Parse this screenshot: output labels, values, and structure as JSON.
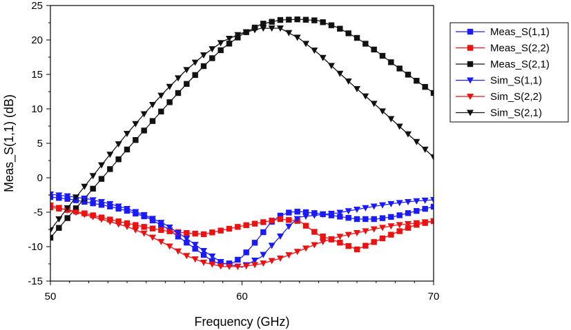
{
  "chart_data": {
    "type": "line",
    "xlabel": "Frequency (GHz)",
    "ylabel": "Meas_S(1,1) (dB)",
    "xlim": [
      50,
      70
    ],
    "ylim": [
      -15,
      25
    ],
    "xticks": [
      50,
      60,
      70
    ],
    "yticks": [
      -15,
      -10,
      -5,
      0,
      5,
      10,
      15,
      20,
      25
    ],
    "grid": false,
    "legend_position": "top-right",
    "series": [
      {
        "name": "Meas_S(1,1)",
        "marker": "square",
        "color": "#1a1aff",
        "x": [
          50,
          51,
          52,
          53,
          54,
          55,
          56,
          57,
          58,
          58.5,
          59,
          59.5,
          60,
          60.5,
          61,
          61.5,
          62,
          62.5,
          63,
          64,
          65,
          66,
          67,
          68,
          69,
          70
        ],
        "y": [
          -2.8,
          -3.1,
          -3.6,
          -4.1,
          -4.8,
          -5.7,
          -7.2,
          -9.2,
          -11.2,
          -12.2,
          -12.5,
          -12.4,
          -11.5,
          -10.0,
          -8.3,
          -6.5,
          -5.5,
          -5.0,
          -4.9,
          -5.2,
          -5.6,
          -6.0,
          -6.0,
          -5.6,
          -4.9,
          -4.2
        ]
      },
      {
        "name": "Meas_S(2,2)",
        "marker": "square",
        "color": "#ee1111",
        "x": [
          50,
          51,
          52,
          53,
          54,
          55,
          56,
          57,
          58,
          59,
          60,
          61,
          62,
          63,
          64,
          65,
          66,
          67,
          68,
          69,
          70
        ],
        "y": [
          -4.3,
          -4.7,
          -5.3,
          -6.0,
          -6.6,
          -7.2,
          -7.7,
          -8.0,
          -8.2,
          -7.6,
          -7.0,
          -6.5,
          -6.0,
          -6.3,
          -8.3,
          -9.3,
          -10.4,
          -9.2,
          -8.0,
          -6.9,
          -6.3
        ]
      },
      {
        "name": "Meas_S(2,1)",
        "marker": "square",
        "color": "#111111",
        "x": [
          50,
          51,
          52,
          53,
          54,
          55,
          56,
          57,
          58,
          59,
          60,
          61,
          62,
          63,
          64,
          65,
          66,
          67,
          68,
          69,
          70
        ],
        "y": [
          -8.7,
          -5.5,
          -2.3,
          0.9,
          4.1,
          7.2,
          10.3,
          13.3,
          16.2,
          18.8,
          20.8,
          22.3,
          22.9,
          23.0,
          22.8,
          21.8,
          20.3,
          18.4,
          16.3,
          14.3,
          12.3
        ]
      },
      {
        "name": "Sim_S(1,1)",
        "marker": "triangle-down",
        "color": "#1a1aff",
        "x": [
          50,
          51,
          52,
          53,
          54,
          55,
          56,
          57,
          58,
          59,
          60,
          61,
          62,
          62.5,
          63,
          64,
          65,
          66,
          67,
          68,
          69,
          70
        ],
        "y": [
          -2.4,
          -2.7,
          -3.1,
          -3.7,
          -4.5,
          -5.5,
          -6.8,
          -8.6,
          -10.6,
          -12.4,
          -13.0,
          -11.5,
          -8.5,
          -6.9,
          -5.7,
          -5.4,
          -5.1,
          -4.6,
          -4.1,
          -3.7,
          -3.4,
          -3.2
        ]
      },
      {
        "name": "Sim_S(2,2)",
        "marker": "triangle-down",
        "color": "#ee1111",
        "x": [
          50,
          51,
          52,
          53,
          54,
          55,
          56,
          57,
          58,
          59,
          60,
          61,
          62,
          63,
          64,
          65,
          66,
          67,
          68,
          69,
          70
        ],
        "y": [
          -4.0,
          -4.8,
          -5.5,
          -6.3,
          -7.1,
          -8.2,
          -9.6,
          -11.2,
          -12.3,
          -12.9,
          -12.9,
          -12.5,
          -11.7,
          -10.6,
          -9.5,
          -8.6,
          -8.0,
          -7.4,
          -6.9,
          -6.6,
          -6.3
        ]
      },
      {
        "name": "Sim_S(2,1)",
        "marker": "triangle-down",
        "color": "#111111",
        "x": [
          50,
          51,
          52,
          53,
          54,
          55,
          56,
          57,
          58,
          59,
          60,
          61,
          62,
          63,
          64,
          65,
          66,
          67,
          68,
          69,
          70
        ],
        "y": [
          -7.6,
          -4.0,
          -0.5,
          3.0,
          6.4,
          9.6,
          12.6,
          15.4,
          17.8,
          19.8,
          21.0,
          21.7,
          21.7,
          20.2,
          18.0,
          15.4,
          12.9,
          10.5,
          8.0,
          5.5,
          3.0
        ]
      }
    ]
  }
}
